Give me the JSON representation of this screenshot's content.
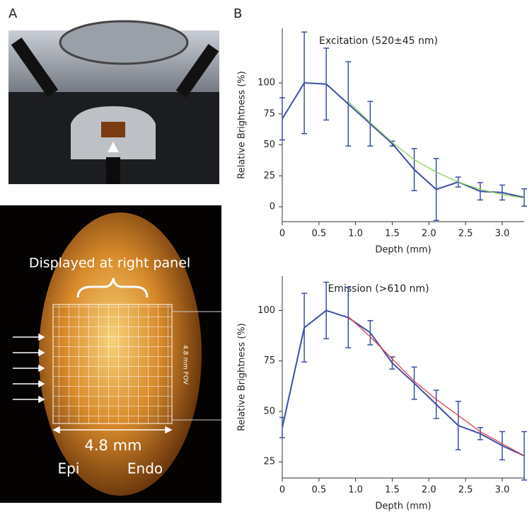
{
  "panels": {
    "a": "A",
    "b": "B"
  },
  "photo": {
    "caption": "Displayed at right panel",
    "width": "4.8 mm",
    "epi": "Epi",
    "endo": "Endo",
    "fov": "4.8 mm FOV"
  },
  "chart_data": [
    {
      "type": "line",
      "title": "Excitation (520±45 nm)",
      "x_label": "Depth (mm)",
      "y_label": "Relative Brightness (%)",
      "xlim": [
        0,
        3.3
      ],
      "ylim": [
        -12,
        144
      ],
      "xticks": [
        0,
        0.5,
        {
          "value": 1,
          "label": "1.0"
        },
        1.5,
        {
          "value": 2,
          "label": "2.0"
        },
        2.5,
        {
          "value": 3,
          "label": "3.0"
        }
      ],
      "yticks": [
        0,
        25,
        50,
        75,
        100
      ],
      "series": [
        {
          "color": "#3a4fa8",
          "x": [
            0,
            0.3,
            0.6,
            0.9,
            1.2,
            1.5,
            1.8,
            2.1,
            2.4,
            2.7,
            3.0,
            3.3
          ],
          "values": [
            71,
            100,
            99,
            83,
            67,
            51,
            30,
            14,
            20,
            12.5,
            11.5,
            7.5
          ],
          "errors": [
            17,
            41,
            29,
            34,
            18,
            2,
            17,
            25,
            4,
            7,
            6,
            7
          ]
        },
        {
          "color": "#8fcf5a",
          "x": [
            0.9,
            1.2,
            1.5,
            1.8,
            2.1,
            2.4,
            2.7,
            3.0,
            3.3
          ],
          "values": [
            85,
            68,
            52,
            38,
            28,
            20,
            14,
            10,
            7
          ]
        }
      ]
    },
    {
      "type": "line",
      "title": "Emission (>610 nm)",
      "x_label": "Depth (mm)",
      "y_label": "Relative Brightness (%)",
      "xlim": [
        0,
        3.3
      ],
      "ylim": [
        17,
        117
      ],
      "xticks": [
        0,
        0.5,
        {
          "value": 1,
          "label": "1.0"
        },
        1.5,
        {
          "value": 2,
          "label": "2.0"
        },
        2.5,
        {
          "value": 3,
          "label": "3.0"
        }
      ],
      "yticks": [
        25,
        50,
        75,
        100
      ],
      "series": [
        {
          "color": "#3a4fa8",
          "x": [
            0,
            0.3,
            0.6,
            0.9,
            1.2,
            1.5,
            1.8,
            2.1,
            2.4,
            2.7,
            3.0,
            3.3
          ],
          "values": [
            42,
            91.5,
            100,
            96.5,
            89,
            74,
            64,
            53.5,
            43,
            39,
            33,
            28
          ],
          "errors": [
            5,
            17,
            14,
            15,
            6,
            3,
            8,
            7,
            12,
            3,
            7,
            12
          ]
        },
        {
          "color": "#e0404a",
          "x": [
            0.9,
            1.2,
            1.5,
            1.8,
            2.1,
            2.4,
            2.7,
            3.0,
            3.3
          ],
          "values": [
            97,
            87,
            76,
            65,
            56,
            48,
            40,
            34,
            28
          ]
        }
      ]
    }
  ]
}
